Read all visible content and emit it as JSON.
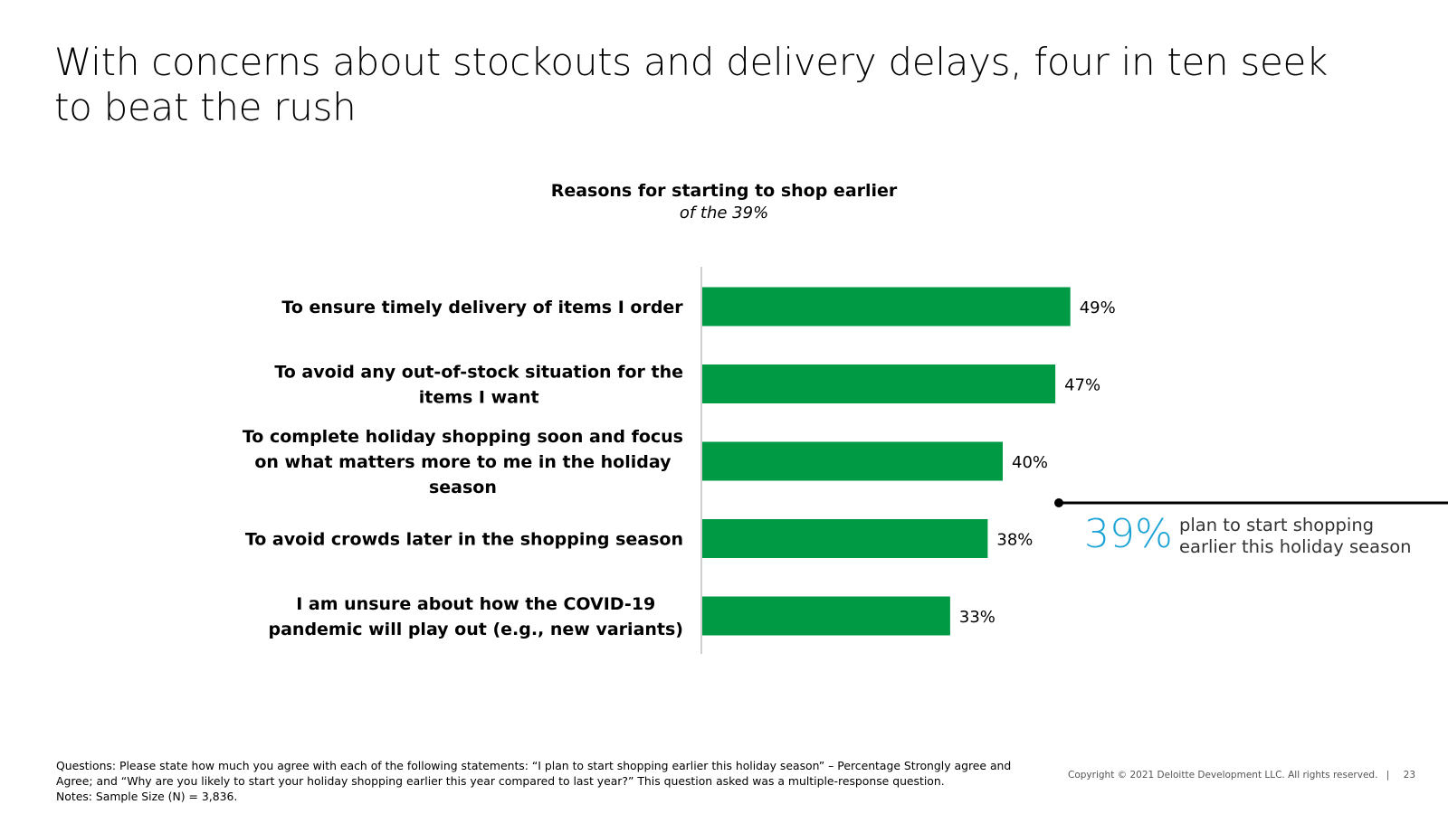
{
  "slide": {
    "title": "With concerns about stockouts and delivery delays, four in ten seek to beat the rush"
  },
  "chart_data": {
    "type": "bar",
    "orientation": "horizontal",
    "title": "Reasons for starting to shop earlier",
    "subtitle": "of the 39%",
    "categories": [
      "To ensure timely delivery of items I order",
      "To avoid any out-of-stock situation for the items I want",
      "To complete holiday shopping soon and focus on what matters more to me in the holiday season",
      "To avoid crowds later in the shopping season",
      "I am unsure about how the COVID-19 pandemic will play out (e.g., new variants)"
    ],
    "category_lines": [
      [
        "To ensure timely delivery of items I order"
      ],
      [
        "To avoid any out-of-stock situation for the",
        "items I want"
      ],
      [
        "To complete holiday shopping soon and focus",
        "on what matters more to me in the holiday",
        "season"
      ],
      [
        "To avoid crowds later in the shopping season"
      ],
      [
        "I am unsure about how the COVID-19",
        "pandemic will play out (e.g., new variants)"
      ]
    ],
    "values": [
      49,
      47,
      40,
      38,
      33
    ],
    "value_labels": [
      "49%",
      "47%",
      "40%",
      "38%",
      "33%"
    ],
    "unit": "%",
    "xlim": [
      0,
      100
    ],
    "bar_color": "#009a44",
    "axis_color": "#d0d0d0",
    "grid": false,
    "legend": "none"
  },
  "callout": {
    "big_number": "39%",
    "text": "plan to start shopping earlier this holiday season",
    "accent_color": "#1ba3d6"
  },
  "footnotes": {
    "lines": [
      "Questions: Please state how much you agree with each of the following statements: “I plan to start shopping earlier this holiday season” – Percentage Strongly agree and",
      "Agree; and “Why are you likely to start your holiday shopping earlier this year compared to last year?” This question asked was a multiple-response question.",
      "Notes: Sample Size (N) = 3,836."
    ]
  },
  "copyright": {
    "text": "Copyright © 2021 Deloitte Development LLC. All rights reserved.",
    "separator": "|",
    "page_number": "23"
  }
}
